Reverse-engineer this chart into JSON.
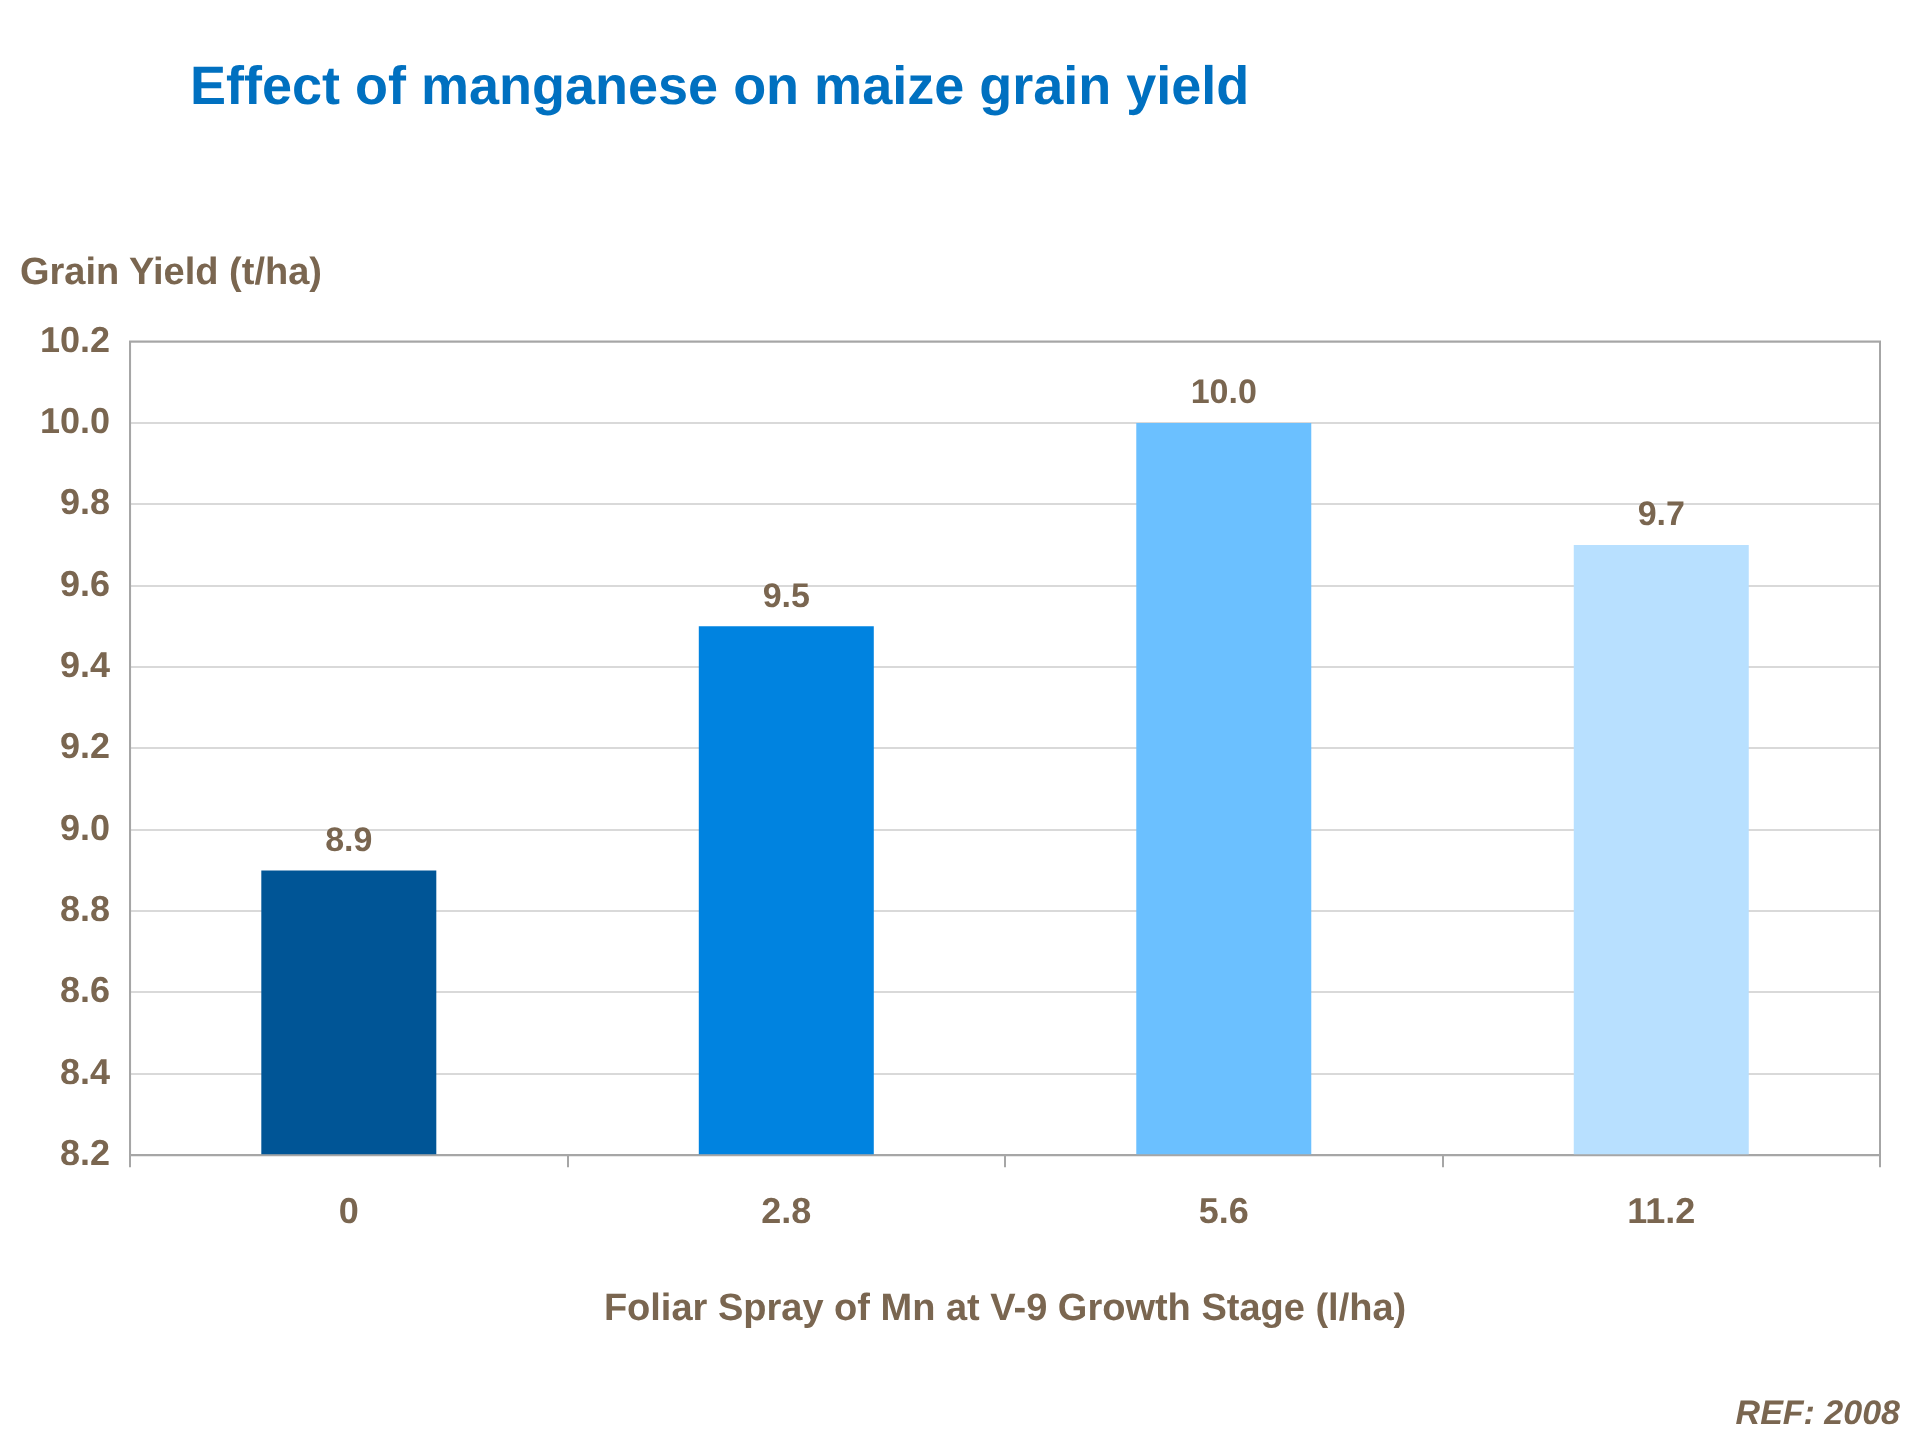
{
  "chart_data": {
    "type": "bar",
    "title": "Effect of manganese on maize grain yield",
    "ylabel": "Grain Yield (t/ha)",
    "xlabel": "Foliar Spray of Mn at V-9 Growth Stage (l/ha)",
    "categories": [
      "0",
      "2.8",
      "5.6",
      "11.2"
    ],
    "values": [
      8.9,
      9.5,
      10.0,
      9.7
    ],
    "colors": [
      "#005596",
      "#0083e0",
      "#6bc0ff",
      "#b8e0ff"
    ],
    "ylim": [
      8.2,
      10.2
    ],
    "yticks": [
      {
        "value": 8.2,
        "label": "8.2"
      },
      {
        "value": 8.4,
        "label": "8.4"
      },
      {
        "value": 8.6,
        "label": "8.6"
      },
      {
        "value": 8.8,
        "label": "8.8"
      },
      {
        "value": 9.0,
        "label": "9.0"
      },
      {
        "value": 9.2,
        "label": "9.2"
      },
      {
        "value": 9.4,
        "label": "9.4"
      },
      {
        "value": 9.6,
        "label": "9.6"
      },
      {
        "value": 9.8,
        "label": "9.8"
      },
      {
        "value": 10.0,
        "label": "10.0"
      },
      {
        "value": 10.2,
        "label": "10.2"
      }
    ],
    "value_labels": [
      "8.9",
      "9.5",
      "10.0",
      "9.7"
    ],
    "grid": "y",
    "legend": false,
    "annotations": [
      "REF: 2008"
    ]
  }
}
